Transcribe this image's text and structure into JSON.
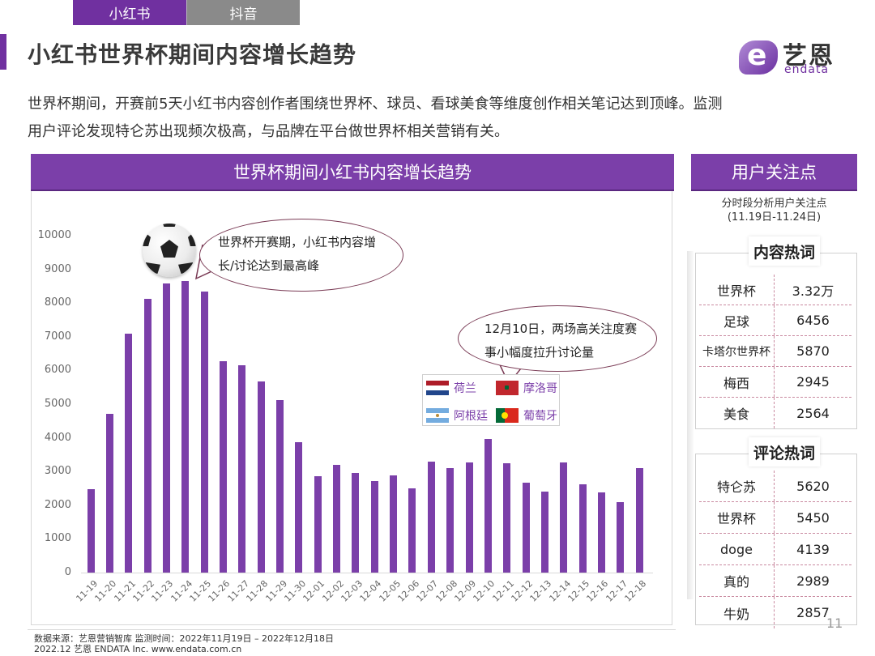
{
  "tabs": [
    {
      "label": "小红书",
      "active": true
    },
    {
      "label": "抖音",
      "active": false
    }
  ],
  "page_title": "小红书世界杯期间内容增长趋势",
  "logo": {
    "cn": "艺恩",
    "en": "endata"
  },
  "intro": {
    "line1": "世界杯期间，开赛前5天小红书内容创作者围绕世界杯、球员、看球美食等维度创作相关笔记达到顶峰。监测",
    "line2": "用户评论发现特仑苏出现频次极高，与品牌在平台做世界杯相关营销有关。"
  },
  "chart_panel": {
    "title": "世界杯期间小红书内容增长趋势"
  },
  "annotations": {
    "peak": {
      "line1": "世界杯开赛期，小红书内容增",
      "line2": "长/讨论达到最高峰"
    },
    "dec10": {
      "line1": "12月10日，两场高关注度赛",
      "line2": "事小幅度拉升讨论量"
    }
  },
  "legend": [
    {
      "label": "荷兰",
      "flag": "netherlands-flag"
    },
    {
      "label": "摩洛哥",
      "flag": "morocco-flag"
    },
    {
      "label": "阿根廷",
      "flag": "argentina-flag"
    },
    {
      "label": "葡萄牙",
      "flag": "portugal-flag"
    }
  ],
  "chart_data": {
    "type": "bar",
    "title": "世界杯期间小红书内容增长趋势",
    "xlabel": "",
    "ylabel": "",
    "ylim": [
      0,
      10000
    ],
    "yticks": [
      "0",
      "1000",
      "2000",
      "3000",
      "4000",
      "5000",
      "6000",
      "7000",
      "8000",
      "9000",
      "10000"
    ],
    "grid": false,
    "color": "#7b3fa9",
    "categories": [
      "11-19",
      "11-20",
      "11-21",
      "11-22",
      "11-23",
      "11-24",
      "11-25",
      "11-26",
      "11-27",
      "11-28",
      "11-29",
      "11-30",
      "12-01",
      "12-02",
      "12-03",
      "12-04",
      "12-05",
      "12-06",
      "12-07",
      "12-08",
      "12-09",
      "12-10",
      "12-11",
      "12-12",
      "12-13",
      "12-14",
      "12-15",
      "12-16",
      "12-17",
      "12-18"
    ],
    "values": [
      2480,
      4720,
      7080,
      8130,
      8570,
      8650,
      8330,
      6270,
      6150,
      5670,
      5130,
      3860,
      2860,
      3200,
      2960,
      2720,
      2880,
      2490,
      3290,
      3090,
      3260,
      3960,
      3250,
      2660,
      2400,
      3270,
      2620,
      2370,
      2100,
      3100
    ]
  },
  "side": {
    "header": "用户关注点",
    "subtitle1": "分时段分析用户关注点",
    "subtitle2": "(11.19日-11.24日)",
    "content_keywords": {
      "label": "内容热词",
      "rows": [
        {
          "term": "世界杯",
          "value": "3.32万"
        },
        {
          "term": "足球",
          "value": "6456"
        },
        {
          "term": "卡塔尔世界杯",
          "value": "5870"
        },
        {
          "term": "梅西",
          "value": "2945"
        },
        {
          "term": "美食",
          "value": "2564"
        }
      ]
    },
    "comment_keywords": {
      "label": "评论热词",
      "rows": [
        {
          "term": "特仑苏",
          "value": "5620"
        },
        {
          "term": "世界杯",
          "value": "5450"
        },
        {
          "term": "doge",
          "value": "4139"
        },
        {
          "term": "真的",
          "value": "2989"
        },
        {
          "term": "牛奶",
          "value": "2857"
        }
      ]
    }
  },
  "page_number": "11",
  "footer": {
    "line1": "数据来源：艺恩营销智库 监测时间：2022年11月19日 – 2022年12月18日",
    "line2": "2022.12 艺恩 ENDATA Inc.    www.endata.com.cn"
  }
}
